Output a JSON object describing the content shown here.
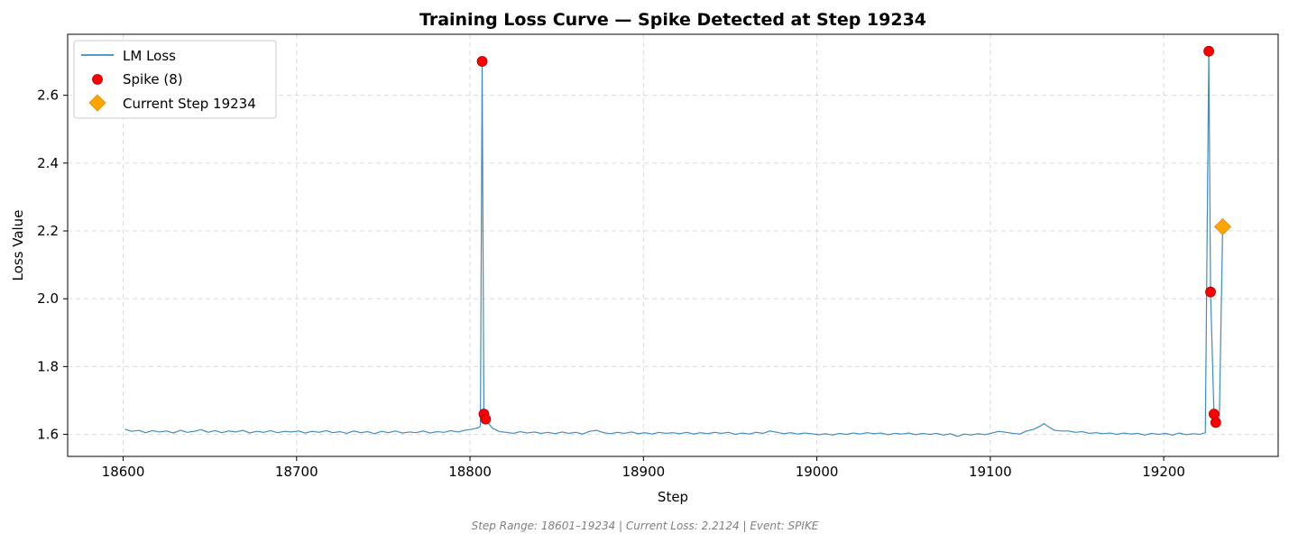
{
  "chart_data": {
    "type": "line",
    "title": "Training Loss Curve — Spike Detected at Step 19234",
    "xlabel": "Step",
    "ylabel": "Loss Value",
    "xlim": [
      18568,
      19266
    ],
    "ylim": [
      1.535,
      2.78
    ],
    "xticks": [
      18600,
      18700,
      18800,
      18900,
      19000,
      19100,
      19200
    ],
    "yticks": [
      1.6,
      1.8,
      2.0,
      2.2,
      2.4,
      2.6
    ],
    "grid": true,
    "legend_position": "upper-left",
    "series": [
      {
        "name": "LM Loss",
        "color": "#1f77b4",
        "points": [
          [
            18601,
            1.615
          ],
          [
            18605,
            1.609
          ],
          [
            18609,
            1.612
          ],
          [
            18613,
            1.605
          ],
          [
            18617,
            1.611
          ],
          [
            18621,
            1.607
          ],
          [
            18625,
            1.61
          ],
          [
            18629,
            1.604
          ],
          [
            18633,
            1.612
          ],
          [
            18637,
            1.606
          ],
          [
            18641,
            1.609
          ],
          [
            18645,
            1.614
          ],
          [
            18649,
            1.606
          ],
          [
            18653,
            1.611
          ],
          [
            18657,
            1.605
          ],
          [
            18661,
            1.61
          ],
          [
            18665,
            1.607
          ],
          [
            18669,
            1.612
          ],
          [
            18673,
            1.604
          ],
          [
            18677,
            1.609
          ],
          [
            18681,
            1.606
          ],
          [
            18685,
            1.611
          ],
          [
            18689,
            1.605
          ],
          [
            18693,
            1.609
          ],
          [
            18697,
            1.607
          ],
          [
            18701,
            1.61
          ],
          [
            18705,
            1.604
          ],
          [
            18709,
            1.609
          ],
          [
            18713,
            1.606
          ],
          [
            18717,
            1.611
          ],
          [
            18721,
            1.605
          ],
          [
            18725,
            1.608
          ],
          [
            18729,
            1.603
          ],
          [
            18733,
            1.61
          ],
          [
            18737,
            1.605
          ],
          [
            18741,
            1.608
          ],
          [
            18745,
            1.602
          ],
          [
            18749,
            1.609
          ],
          [
            18753,
            1.605
          ],
          [
            18757,
            1.61
          ],
          [
            18761,
            1.604
          ],
          [
            18765,
            1.607
          ],
          [
            18769,
            1.605
          ],
          [
            18773,
            1.61
          ],
          [
            18777,
            1.604
          ],
          [
            18781,
            1.608
          ],
          [
            18785,
            1.606
          ],
          [
            18789,
            1.611
          ],
          [
            18793,
            1.607
          ],
          [
            18797,
            1.612
          ],
          [
            18801,
            1.615
          ],
          [
            18805,
            1.62
          ],
          [
            18806,
            1.625
          ],
          [
            18807,
            2.7
          ],
          [
            18808,
            1.66
          ],
          [
            18809,
            1.645
          ],
          [
            18811,
            1.63
          ],
          [
            18813,
            1.618
          ],
          [
            18817,
            1.608
          ],
          [
            18821,
            1.606
          ],
          [
            18825,
            1.603
          ],
          [
            18829,
            1.608
          ],
          [
            18833,
            1.604
          ],
          [
            18837,
            1.607
          ],
          [
            18841,
            1.603
          ],
          [
            18845,
            1.606
          ],
          [
            18849,
            1.602
          ],
          [
            18853,
            1.607
          ],
          [
            18857,
            1.603
          ],
          [
            18861,
            1.606
          ],
          [
            18865,
            1.601
          ],
          [
            18869,
            1.609
          ],
          [
            18873,
            1.612
          ],
          [
            18877,
            1.605
          ],
          [
            18881,
            1.602
          ],
          [
            18885,
            1.606
          ],
          [
            18889,
            1.603
          ],
          [
            18893,
            1.607
          ],
          [
            18897,
            1.602
          ],
          [
            18901,
            1.605
          ],
          [
            18905,
            1.601
          ],
          [
            18909,
            1.606
          ],
          [
            18913,
            1.603
          ],
          [
            18917,
            1.605
          ],
          [
            18921,
            1.602
          ],
          [
            18925,
            1.606
          ],
          [
            18929,
            1.601
          ],
          [
            18933,
            1.605
          ],
          [
            18937,
            1.602
          ],
          [
            18941,
            1.606
          ],
          [
            18945,
            1.603
          ],
          [
            18949,
            1.606
          ],
          [
            18953,
            1.6
          ],
          [
            18957,
            1.604
          ],
          [
            18961,
            1.601
          ],
          [
            18965,
            1.606
          ],
          [
            18969,
            1.603
          ],
          [
            18973,
            1.61
          ],
          [
            18977,
            1.606
          ],
          [
            18981,
            1.602
          ],
          [
            18985,
            1.605
          ],
          [
            18989,
            1.601
          ],
          [
            18993,
            1.604
          ],
          [
            18997,
            1.602
          ],
          [
            19001,
            1.599
          ],
          [
            19005,
            1.602
          ],
          [
            19009,
            1.598
          ],
          [
            19013,
            1.603
          ],
          [
            19017,
            1.6
          ],
          [
            19021,
            1.604
          ],
          [
            19025,
            1.601
          ],
          [
            19029,
            1.605
          ],
          [
            19033,
            1.602
          ],
          [
            19037,
            1.604
          ],
          [
            19041,
            1.599
          ],
          [
            19045,
            1.603
          ],
          [
            19049,
            1.601
          ],
          [
            19053,
            1.604
          ],
          [
            19057,
            1.599
          ],
          [
            19061,
            1.603
          ],
          [
            19065,
            1.6
          ],
          [
            19069,
            1.603
          ],
          [
            19073,
            1.598
          ],
          [
            19077,
            1.602
          ],
          [
            19081,
            1.594
          ],
          [
            19085,
            1.601
          ],
          [
            19089,
            1.598
          ],
          [
            19093,
            1.602
          ],
          [
            19097,
            1.599
          ],
          [
            19101,
            1.604
          ],
          [
            19105,
            1.609
          ],
          [
            19109,
            1.606
          ],
          [
            19113,
            1.603
          ],
          [
            19117,
            1.601
          ],
          [
            19121,
            1.61
          ],
          [
            19125,
            1.615
          ],
          [
            19129,
            1.625
          ],
          [
            19131,
            1.632
          ],
          [
            19133,
            1.624
          ],
          [
            19137,
            1.612
          ],
          [
            19141,
            1.61
          ],
          [
            19145,
            1.61
          ],
          [
            19149,
            1.606
          ],
          [
            19153,
            1.608
          ],
          [
            19157,
            1.603
          ],
          [
            19161,
            1.605
          ],
          [
            19165,
            1.602
          ],
          [
            19169,
            1.604
          ],
          [
            19173,
            1.6
          ],
          [
            19177,
            1.604
          ],
          [
            19181,
            1.601
          ],
          [
            19185,
            1.603
          ],
          [
            19189,
            1.598
          ],
          [
            19193,
            1.603
          ],
          [
            19197,
            1.6
          ],
          [
            19201,
            1.603
          ],
          [
            19205,
            1.598
          ],
          [
            19209,
            1.604
          ],
          [
            19213,
            1.599
          ],
          [
            19217,
            1.602
          ],
          [
            19221,
            1.6
          ],
          [
            19224,
            1.605
          ],
          [
            19226,
            2.73
          ],
          [
            19227,
            2.02
          ],
          [
            19229,
            1.66
          ],
          [
            19230,
            1.635
          ],
          [
            19232,
            1.625
          ],
          [
            19234,
            2.2124
          ]
        ]
      },
      {
        "name": "Spike (8)",
        "color": "#ff0000",
        "edge_color": "#b00000",
        "marker": "circle",
        "points": [
          [
            18807,
            2.7
          ],
          [
            18808,
            1.66
          ],
          [
            18809,
            1.645
          ],
          [
            19226,
            2.73
          ],
          [
            19227,
            2.02
          ],
          [
            19229,
            1.66
          ],
          [
            19230,
            1.635
          ]
        ]
      },
      {
        "name": "Current Step 19234",
        "color": "#ffa500",
        "edge_color": "#e08c00",
        "marker": "diamond",
        "points": [
          [
            19234,
            2.2124
          ]
        ]
      }
    ],
    "footer": "Step Range: 18601–19234 | Current Loss: 2.2124 | Event: SPIKE"
  }
}
